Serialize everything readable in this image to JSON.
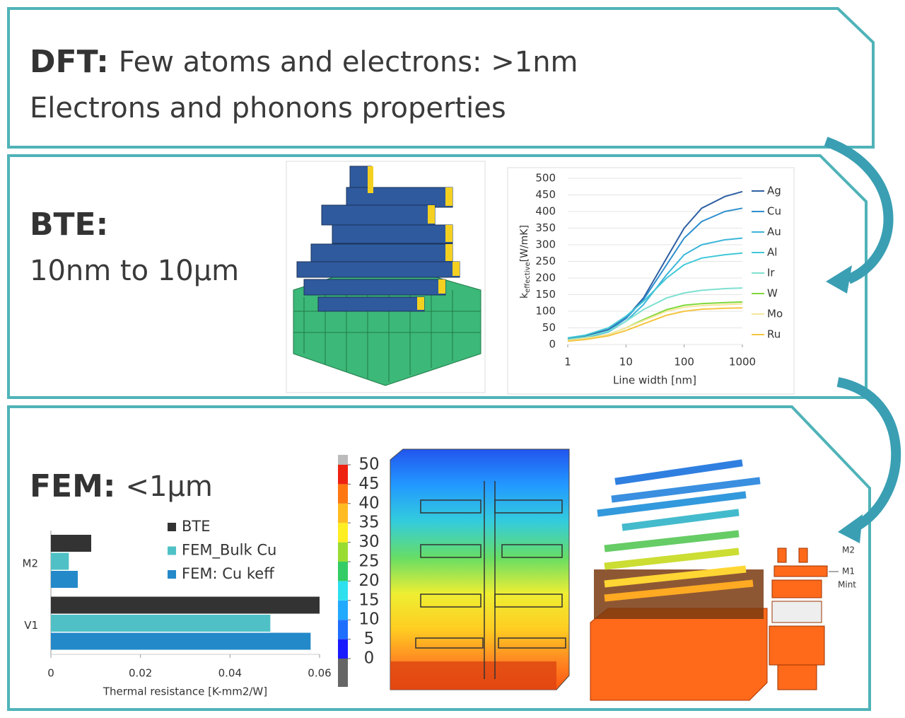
{
  "panels": [
    {
      "label": "DFT:",
      "text": "Few atoms and electrons: >1nm",
      "subtext": "Electrons and phonons properties"
    },
    {
      "label": "BTE:",
      "subtext": "10nm to 10µm"
    },
    {
      "label": "FEM:",
      "text": "<1µm"
    }
  ],
  "line_chart": {
    "type": "line",
    "y_label": {
      "main": "k",
      "sub": "effective",
      "unit": "[W/mK]"
    },
    "x_label": "Line width [nm]",
    "xscale": "log",
    "x": [
      1,
      2,
      5,
      10,
      20,
      50,
      100,
      200,
      500,
      1000
    ],
    "xlim": [
      1,
      1000
    ],
    "xticks": [
      1,
      10,
      100,
      1000
    ],
    "ylim": [
      0,
      500
    ],
    "yticks": [
      0,
      50,
      100,
      150,
      200,
      250,
      300,
      350,
      400,
      450,
      500
    ],
    "grid": true,
    "legend": "right",
    "series": [
      {
        "name": "Ag",
        "color": "#2e5fa3",
        "values": [
          18,
          25,
          45,
          80,
          140,
          260,
          350,
          410,
          445,
          460
        ]
      },
      {
        "name": "Cu",
        "color": "#2e8fcf",
        "values": [
          15,
          22,
          42,
          78,
          135,
          240,
          320,
          370,
          400,
          410
        ]
      },
      {
        "name": "Au",
        "color": "#3cb5d8",
        "values": [
          14,
          20,
          38,
          70,
          120,
          210,
          270,
          300,
          315,
          320
        ]
      },
      {
        "name": "Al",
        "color": "#40c8d8",
        "values": [
          20,
          28,
          50,
          85,
          130,
          200,
          240,
          260,
          270,
          275
        ]
      },
      {
        "name": "Ir",
        "color": "#7ee0d0",
        "values": [
          15,
          22,
          40,
          70,
          105,
          140,
          155,
          163,
          168,
          170
        ]
      },
      {
        "name": "W",
        "color": "#7fd83a",
        "values": [
          12,
          18,
          30,
          50,
          75,
          105,
          118,
          123,
          126,
          128
        ]
      },
      {
        "name": "Mo",
        "color": "#f5e79a",
        "values": [
          12,
          18,
          30,
          50,
          72,
          100,
          112,
          117,
          120,
          122
        ]
      },
      {
        "name": "Ru",
        "color": "#f5c542",
        "values": [
          10,
          15,
          26,
          42,
          62,
          88,
          100,
          106,
          109,
          110
        ]
      }
    ]
  },
  "bar_chart": {
    "type": "hbar",
    "x_label": "Thermal resistance [K-mm2/W]",
    "categories": [
      "M2",
      "V1"
    ],
    "xlim": [
      0,
      0.06
    ],
    "xticks": [
      0,
      0.02,
      0.04,
      0.06
    ],
    "series": [
      {
        "name": "BTE",
        "color": "#333333",
        "values": [
          0.009,
          0.06
        ]
      },
      {
        "name": "FEM_Bulk Cu",
        "color": "#4fc1c6",
        "values": [
          0.004,
          0.049
        ]
      },
      {
        "name": "FEM: Cu keff",
        "color": "#2389c9",
        "values": [
          0.006,
          0.058
        ]
      }
    ]
  },
  "colorbar": {
    "ticks": [
      0,
      5,
      10,
      15,
      20,
      25,
      30,
      35,
      40,
      45,
      50
    ],
    "colors": [
      "#1a1aff",
      "#1f6fff",
      "#22aaff",
      "#2ee0ee",
      "#33cc66",
      "#99dd33",
      "#ffee22",
      "#ffbb22",
      "#ff7711",
      "#ee2211"
    ]
  },
  "render_labels": [
    "M2",
    "M1",
    "Mint"
  ]
}
